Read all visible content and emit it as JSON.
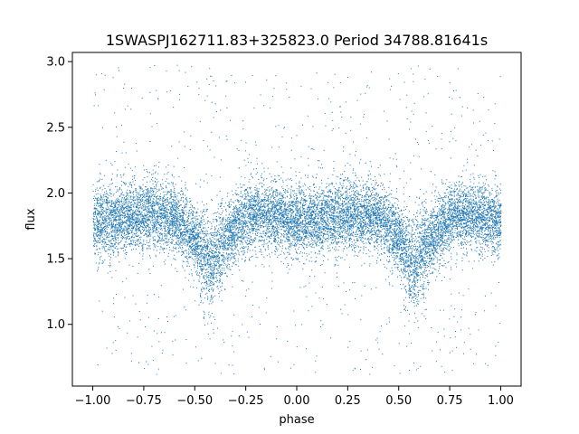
{
  "chart_data": {
    "type": "scatter",
    "title": "1SWASPJ162711.83+325823.0 Period 34788.81641s",
    "xlabel": "phase",
    "ylabel": "flux",
    "xlim": [
      -1.1,
      1.1
    ],
    "ylim": [
      0.53,
      3.07
    ],
    "x_ticks": [
      -1.0,
      -0.75,
      -0.5,
      -0.25,
      0.0,
      0.25,
      0.5,
      0.75,
      1.0
    ],
    "x_tick_labels": [
      "−1.00",
      "−0.75",
      "−0.50",
      "−0.25",
      "0.00",
      "0.25",
      "0.50",
      "0.75",
      "1.00"
    ],
    "y_ticks": [
      1.0,
      1.5,
      2.0,
      2.5,
      3.0
    ],
    "y_tick_labels": [
      "1.0",
      "1.5",
      "2.0",
      "2.5",
      "3.0"
    ],
    "grid": false,
    "marker_color": "#1f77b4",
    "series": [
      {
        "phase": [
          -1.0,
          -0.9,
          -0.8,
          -0.7,
          -0.6,
          -0.5,
          -0.45,
          -0.42,
          -0.4,
          -0.3,
          -0.2,
          -0.1,
          0.0,
          0.1,
          0.2,
          0.3,
          0.4,
          0.5,
          0.55,
          0.58,
          0.6,
          0.7,
          0.8,
          0.9,
          1.0
        ],
        "median_flux": [
          1.78,
          1.8,
          1.83,
          1.85,
          1.82,
          1.66,
          1.5,
          1.44,
          1.52,
          1.74,
          1.86,
          1.82,
          1.78,
          1.8,
          1.83,
          1.85,
          1.82,
          1.66,
          1.5,
          1.44,
          1.52,
          1.74,
          1.86,
          1.82,
          1.78
        ],
        "scatter": 0.13,
        "outlier_range": [
          0.62,
          2.98
        ]
      }
    ]
  }
}
